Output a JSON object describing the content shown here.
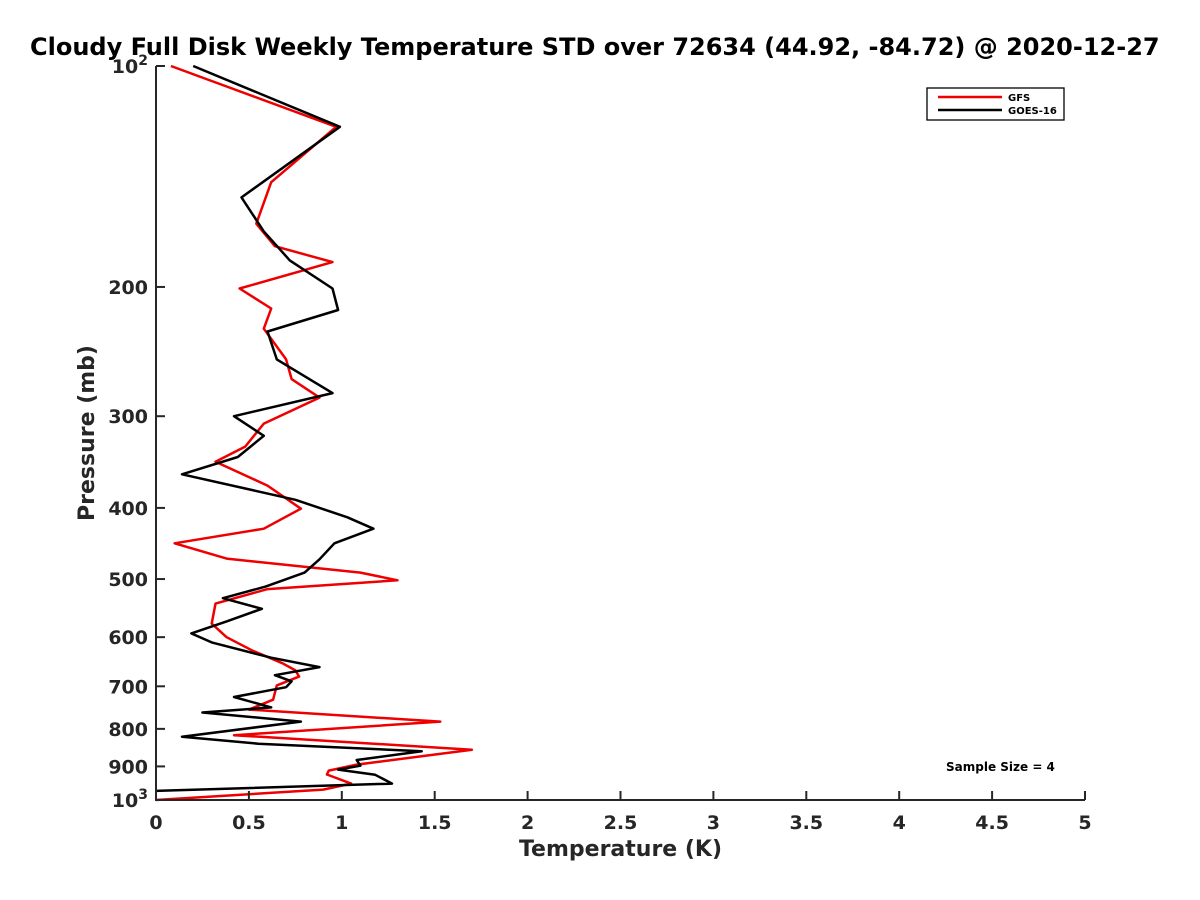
{
  "chart_data": {
    "type": "line",
    "title": "Cloudy Full Disk Weekly Temperature STD over 72634 (44.92, -84.72) @ 2020-12-27",
    "xlabel": "Temperature (K)",
    "ylabel": "Pressure (mb)",
    "xlim": [
      0,
      5
    ],
    "ylim": [
      100,
      1000
    ],
    "y_scale": "log",
    "y_reversed": true,
    "x_ticks": [
      0,
      0.5,
      1,
      1.5,
      2,
      2.5,
      3,
      3.5,
      4,
      4.5,
      5
    ],
    "x_tick_labels": [
      "0",
      "0.5",
      "1",
      "1.5",
      "2",
      "2.5",
      "3",
      "3.5",
      "4",
      "4.5",
      "5"
    ],
    "y_ticks": [
      {
        "value": 100,
        "base": "10",
        "exp": "2"
      },
      {
        "value": 200,
        "label": "200"
      },
      {
        "value": 300,
        "label": "300"
      },
      {
        "value": 400,
        "label": "400"
      },
      {
        "value": 500,
        "label": "500"
      },
      {
        "value": 600,
        "label": "600"
      },
      {
        "value": 700,
        "label": "700"
      },
      {
        "value": 800,
        "label": "800"
      },
      {
        "value": 900,
        "label": "900"
      },
      {
        "value": 1000,
        "base": "10",
        "exp": "3"
      }
    ],
    "grid": false,
    "legend_position": "top-right",
    "annotation": "Sample Size = 4",
    "series": [
      {
        "name": "GFS",
        "color": "#ee0000",
        "points": [
          [
            0.08,
            100
          ],
          [
            0.97,
            121
          ],
          [
            0.62,
            144
          ],
          [
            0.54,
            164
          ],
          [
            0.64,
            176
          ],
          [
            0.95,
            185
          ],
          [
            0.45,
            201
          ],
          [
            0.62,
            214
          ],
          [
            0.58,
            228
          ],
          [
            0.7,
            251
          ],
          [
            0.73,
            267
          ],
          [
            0.88,
            283
          ],
          [
            0.58,
            307
          ],
          [
            0.48,
            330
          ],
          [
            0.32,
            346
          ],
          [
            0.6,
            373
          ],
          [
            0.78,
            401
          ],
          [
            0.58,
            427
          ],
          [
            0.1,
            447
          ],
          [
            0.38,
            469
          ],
          [
            1.1,
            490
          ],
          [
            1.3,
            502
          ],
          [
            0.6,
            516
          ],
          [
            0.32,
            540
          ],
          [
            0.3,
            575
          ],
          [
            0.38,
            600
          ],
          [
            0.52,
            626
          ],
          [
            0.68,
            651
          ],
          [
            0.75,
            666
          ],
          [
            0.77,
            679
          ],
          [
            0.65,
            698
          ],
          [
            0.63,
            730
          ],
          [
            0.5,
            753
          ],
          [
            1.53,
            782
          ],
          [
            0.42,
            816
          ],
          [
            1.7,
            854
          ],
          [
            1.08,
            895
          ],
          [
            0.93,
            912
          ],
          [
            0.92,
            923
          ],
          [
            1.05,
            950
          ],
          [
            0.9,
            968
          ],
          [
            0.0,
            1000
          ]
        ]
      },
      {
        "name": "GOES-16",
        "color": "#000000",
        "points": [
          [
            0.2,
            100
          ],
          [
            0.99,
            121
          ],
          [
            0.46,
            151
          ],
          [
            0.58,
            168
          ],
          [
            0.72,
            184
          ],
          [
            0.95,
            201
          ],
          [
            0.98,
            215
          ],
          [
            0.6,
            230
          ],
          [
            0.65,
            251
          ],
          [
            0.95,
            279
          ],
          [
            0.42,
            300
          ],
          [
            0.58,
            319
          ],
          [
            0.44,
            341
          ],
          [
            0.14,
            360
          ],
          [
            0.75,
            390
          ],
          [
            1.03,
            412
          ],
          [
            1.17,
            427
          ],
          [
            0.96,
            447
          ],
          [
            0.88,
            470
          ],
          [
            0.8,
            490
          ],
          [
            0.59,
            512
          ],
          [
            0.36,
            531
          ],
          [
            0.57,
            549
          ],
          [
            0.38,
            571
          ],
          [
            0.19,
            593
          ],
          [
            0.3,
            610
          ],
          [
            0.62,
            640
          ],
          [
            0.88,
            659
          ],
          [
            0.64,
            676
          ],
          [
            0.73,
            689
          ],
          [
            0.7,
            702
          ],
          [
            0.42,
            724
          ],
          [
            0.62,
            748
          ],
          [
            0.25,
            760
          ],
          [
            0.78,
            782
          ],
          [
            0.14,
            820
          ],
          [
            0.55,
            838
          ],
          [
            1.43,
            858
          ],
          [
            1.08,
            882
          ],
          [
            1.1,
            898
          ],
          [
            0.98,
            909
          ],
          [
            1.18,
            924
          ],
          [
            1.27,
            950
          ],
          [
            0.0,
            972
          ]
        ]
      }
    ]
  }
}
